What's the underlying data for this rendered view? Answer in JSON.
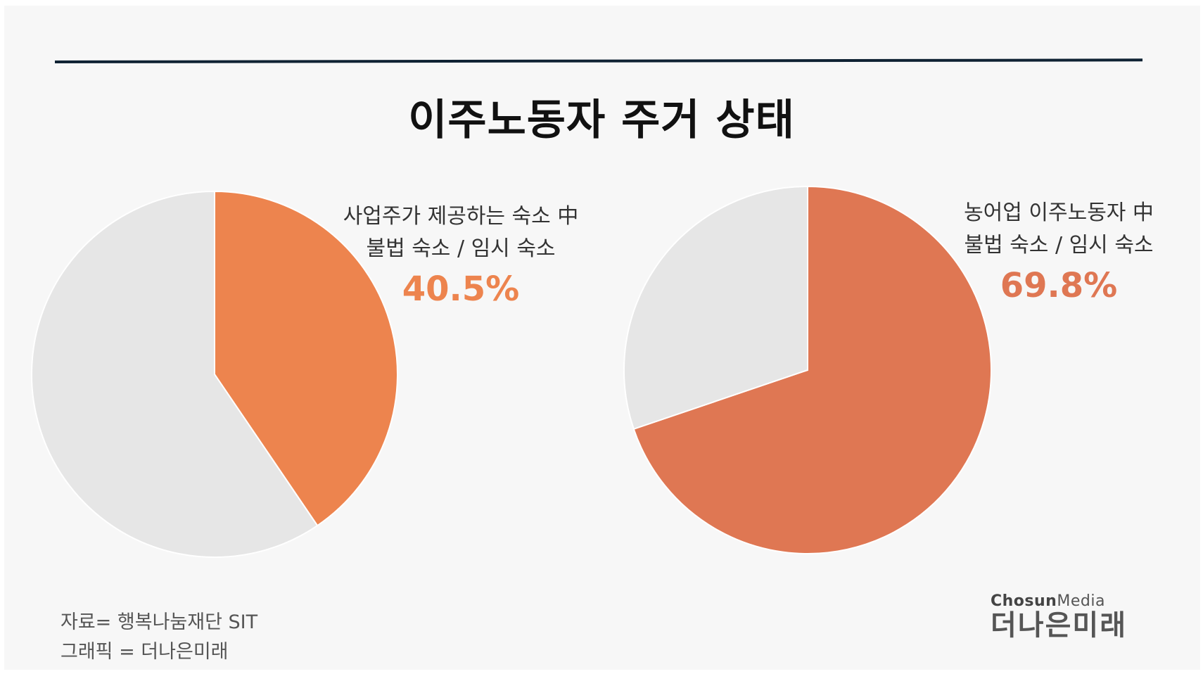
{
  "title": "이주노동자 주거 상태",
  "colors": {
    "background": "#f7f7f7",
    "rule": "#0f2233",
    "rest": "#e6e6e6",
    "highlight1": "#ed844e",
    "highlight2": "#df7753"
  },
  "chart_data": [
    {
      "type": "pie",
      "title": "",
      "annotation": [
        "사업주가 제공하는 숙소 中",
        "불법 숙소 / 임시 숙소"
      ],
      "highlight_label": "40.5%",
      "slices": [
        {
          "label": "불법 숙소 / 임시 숙소",
          "value": 40.5,
          "color": "#ed844e"
        },
        {
          "label": "",
          "value": 59.5,
          "color": "#e6e6e6"
        }
      ]
    },
    {
      "type": "pie",
      "title": "",
      "annotation": [
        "농어업 이주노동자 中",
        "불법 숙소 / 임시 숙소"
      ],
      "highlight_label": "69.8%",
      "slices": [
        {
          "label": "불법 숙소 / 임시 숙소",
          "value": 69.8,
          "color": "#df7753"
        },
        {
          "label": "",
          "value": 30.2,
          "color": "#e6e6e6"
        }
      ]
    }
  ],
  "footer": {
    "source": "자료= 행복나눔재단 SIT",
    "graphic": "그래픽 = 더나은미래"
  },
  "logo": {
    "brand_bold": "Chosun",
    "brand_light": "Media",
    "name": "더나은미래"
  }
}
